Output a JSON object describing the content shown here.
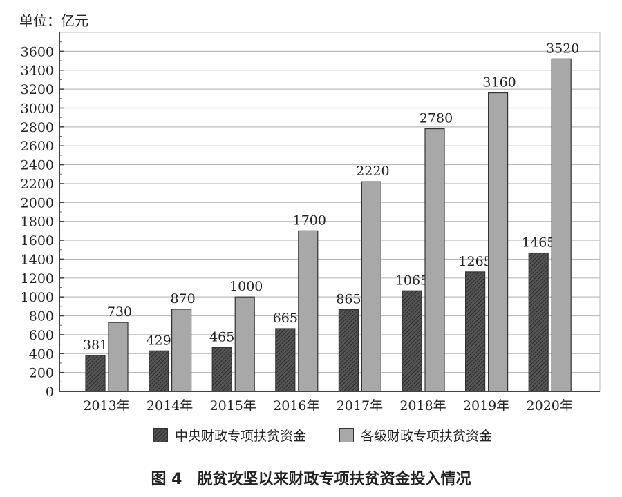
{
  "unit_label": "单位：亿元",
  "caption": "图 4　脱贫攻坚以来财政专项扶贫资金投入情况",
  "legend": [
    {
      "label": "中央财政专项扶贫资金",
      "color": "#3c3c3c"
    },
    {
      "label": "各级财政专项扶贫资金",
      "color": "#a8a8a8"
    }
  ],
  "chart_data": {
    "type": "bar",
    "title": "脱贫攻坚以来财政专项扶贫资金投入情况",
    "figure_label": "图 4",
    "xlabel": "",
    "ylabel": "单位：亿元",
    "ylim": [
      0,
      3800
    ],
    "yticks": [
      0,
      200,
      400,
      600,
      800,
      1000,
      1200,
      1400,
      1600,
      1800,
      2000,
      2200,
      2400,
      2600,
      2800,
      3000,
      3200,
      3400,
      3600
    ],
    "grid": true,
    "legend_position": "bottom",
    "categories": [
      "2013年",
      "2014年",
      "2015年",
      "2016年",
      "2017年",
      "2018年",
      "2019年",
      "2020年"
    ],
    "series": [
      {
        "name": "中央财政专项扶贫资金",
        "values": [
          381,
          429,
          465,
          665,
          865,
          1065,
          1265,
          1465
        ]
      },
      {
        "name": "各级财政专项扶贫资金",
        "values": [
          730,
          870,
          1000,
          1700,
          2220,
          2780,
          3160,
          3520
        ]
      }
    ]
  }
}
